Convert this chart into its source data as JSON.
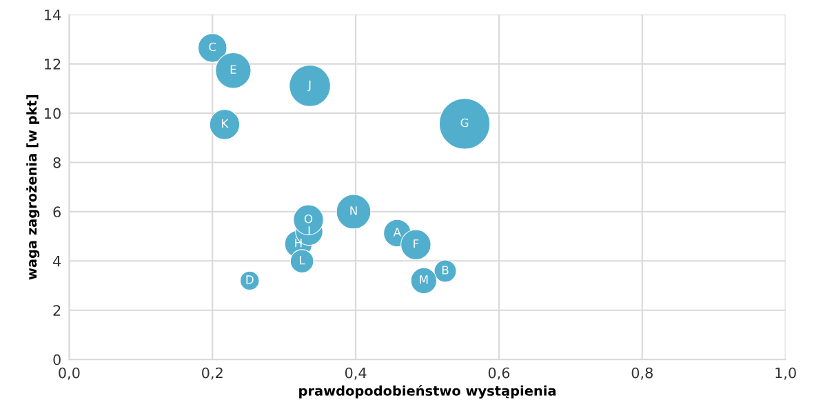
{
  "chart_data": {
    "type": "bubble",
    "xlabel": "prawdopodobieństwo wystąpienia",
    "ylabel": "waga zagrożenia [w pkt]",
    "x": [
      0.458,
      0.525,
      0.2,
      0.252,
      0.229,
      0.484,
      0.552,
      0.32,
      0.335,
      0.336,
      0.217,
      0.325,
      0.495,
      0.397,
      0.334
    ],
    "values": [
      5.13,
      3.59,
      12.65,
      3.2,
      11.73,
      4.66,
      9.57,
      4.69,
      5.19,
      11.11,
      9.54,
      3.99,
      3.2,
      6.0,
      5.67
    ],
    "sizes": [
      0.29,
      0.19,
      0.32,
      0.14,
      0.49,
      0.35,
      1,
      0.29,
      0.29,
      0.66,
      0.35,
      0.21,
      0.26,
      0.46,
      0.35
    ],
    "color": "#52aecd",
    "annotations": [
      {
        "text": "A",
        "x": 0.458,
        "y": 5.13
      },
      {
        "text": "B",
        "x": 0.525,
        "y": 3.59
      },
      {
        "text": "C",
        "x": 0.2,
        "y": 12.65
      },
      {
        "text": "D",
        "x": 0.252,
        "y": 3.2
      },
      {
        "text": "E",
        "x": 0.229,
        "y": 11.73
      },
      {
        "text": "F",
        "x": 0.484,
        "y": 4.66
      },
      {
        "text": "G",
        "x": 0.552,
        "y": 9.57
      },
      {
        "text": "H",
        "x": 0.32,
        "y": 4.69
      },
      {
        "text": "I",
        "x": 0.335,
        "y": 5.19
      },
      {
        "text": "J",
        "x": 0.336,
        "y": 11.11
      },
      {
        "text": "K",
        "x": 0.217,
        "y": 9.54
      },
      {
        "text": "L",
        "x": 0.325,
        "y": 3.99
      },
      {
        "text": "M",
        "x": 0.495,
        "y": 3.2
      },
      {
        "text": "N",
        "x": 0.397,
        "y": 6.0
      },
      {
        "text": "O",
        "x": 0.334,
        "y": 5.67
      }
    ],
    "xlim": [
      0,
      1
    ],
    "ylim": [
      0,
      14
    ],
    "xticks": [
      {
        "value": 0,
        "label": "0,0"
      },
      {
        "value": 0.2,
        "label": "0,2"
      },
      {
        "value": 0.4,
        "label": "0,4"
      },
      {
        "value": 0.6,
        "label": "0,6"
      },
      {
        "value": 0.8,
        "label": "0,8"
      },
      {
        "value": 1,
        "label": "1,0"
      }
    ],
    "yticks": [
      0,
      2,
      4,
      6,
      8,
      10,
      12,
      14
    ],
    "grid": true
  }
}
